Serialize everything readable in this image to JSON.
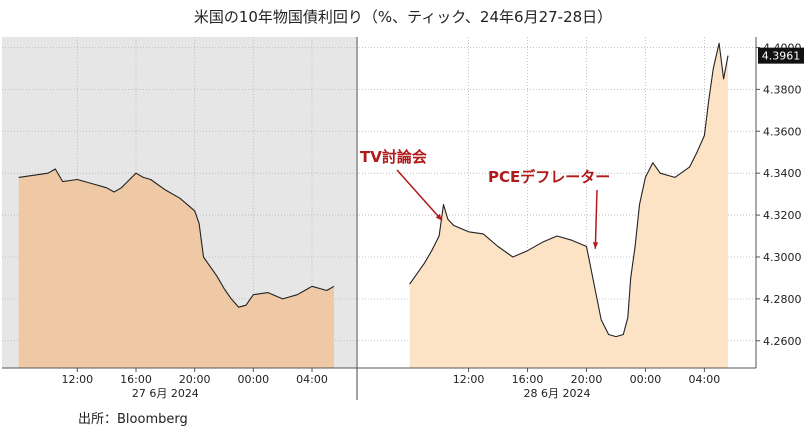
{
  "chart_data": {
    "type": "area",
    "title": "米国の10年物国債利回り（%、ティック、24年6月27-28日）",
    "source": "出所：Bloomberg",
    "ylim": [
      4.247,
      4.405
    ],
    "yticks": [
      "4.2600",
      "4.2800",
      "4.3000",
      "4.3200",
      "4.3400",
      "4.3600",
      "4.3800",
      "4.4000"
    ],
    "ytick_values": [
      4.26,
      4.28,
      4.3,
      4.32,
      4.34,
      4.36,
      4.38,
      4.4
    ],
    "last_value_label": "4.3961",
    "last_value": 4.3961,
    "grid": true,
    "colors": {
      "area_day1": "#efc9a6",
      "area_day2": "#fde3c6",
      "line": "#222222",
      "shaded_bg": "#e6e6e6",
      "annotation": "#b01a1a",
      "badge": "#111111"
    },
    "day_labels": [
      "27 6月 2024",
      "28 6月 2024"
    ],
    "time_ticks_day1": [
      "12:00",
      "16:00",
      "20:00",
      "00:00",
      "04:00"
    ],
    "time_ticks_day2": [
      "12:00",
      "16:00",
      "20:00",
      "00:00",
      "04:00"
    ],
    "series": [
      {
        "day": "27 6月 2024",
        "t": [
          8.0,
          9.0,
          10.0,
          10.5,
          11.0,
          12.0,
          13.0,
          14.0,
          14.5,
          15.0,
          16.0,
          16.5,
          17.0,
          18.0,
          19.0,
          19.5,
          20.0,
          20.3,
          20.6,
          21.0,
          21.5,
          22.0,
          22.5,
          23.0,
          23.5,
          24.0,
          25.0,
          26.0,
          27.0,
          27.5,
          28.0,
          28.5,
          29.0,
          29.5
        ],
        "values": [
          4.338,
          4.339,
          4.34,
          4.342,
          4.336,
          4.337,
          4.335,
          4.333,
          4.331,
          4.333,
          4.34,
          4.338,
          4.337,
          4.332,
          4.328,
          4.325,
          4.322,
          4.316,
          4.3,
          4.296,
          4.291,
          4.285,
          4.28,
          4.276,
          4.277,
          4.282,
          4.283,
          4.28,
          4.282,
          4.284,
          4.286,
          4.285,
          4.284,
          4.286
        ]
      },
      {
        "day": "28 6月 2024",
        "t": [
          8.0,
          8.5,
          9.0,
          9.5,
          10.0,
          10.3,
          10.6,
          11.0,
          12.0,
          13.0,
          14.0,
          15.0,
          16.0,
          17.0,
          18.0,
          19.0,
          20.0,
          21.0,
          21.5,
          22.0,
          22.5,
          22.8,
          23.0,
          23.3,
          23.6,
          24.0,
          24.5,
          25.0,
          26.0,
          27.0,
          27.5,
          28.0,
          28.3,
          28.6,
          29.0,
          29.3,
          29.6
        ],
        "values": [
          4.287,
          4.292,
          4.297,
          4.303,
          4.31,
          4.325,
          4.318,
          4.315,
          4.312,
          4.311,
          4.305,
          4.3,
          4.303,
          4.307,
          4.31,
          4.308,
          4.305,
          4.27,
          4.263,
          4.262,
          4.263,
          4.271,
          4.29,
          4.305,
          4.325,
          4.338,
          4.345,
          4.34,
          4.338,
          4.343,
          4.35,
          4.358,
          4.375,
          4.39,
          4.402,
          4.385,
          4.3961
        ]
      }
    ],
    "annotations": [
      {
        "text": "TV討論会",
        "day": 1,
        "t": 10.2,
        "value": 4.3155
      },
      {
        "text": "PCEデフレーター",
        "day": 1,
        "t": 20.6,
        "value": 4.302
      }
    ]
  }
}
